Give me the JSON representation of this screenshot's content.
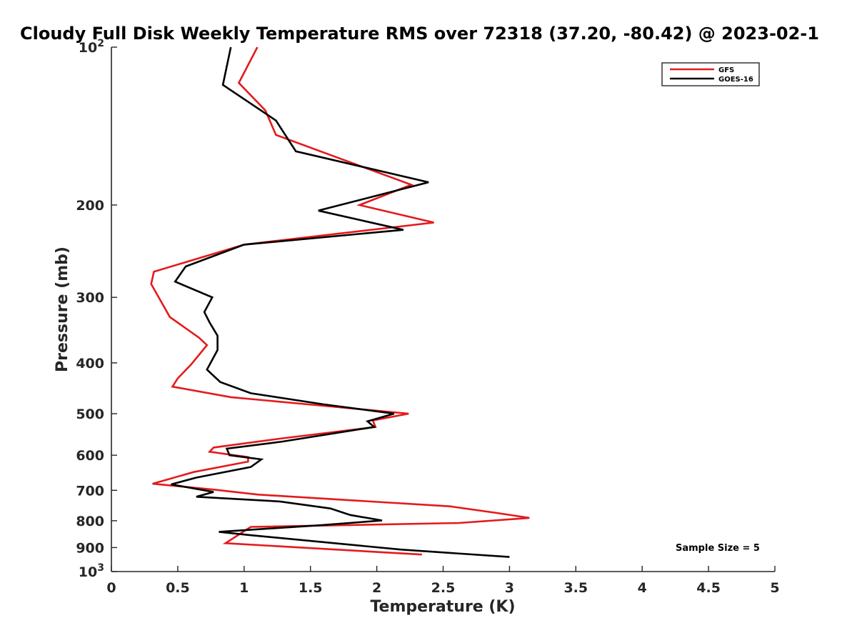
{
  "chart_data": {
    "type": "line",
    "title": "Cloudy Full Disk Weekly Temperature RMS over 72318 (37.20, -80.42) @ 2023-02-1",
    "xlabel": "Temperature (K)",
    "ylabel": "Pressure (mb)",
    "xlim": [
      0,
      5
    ],
    "ylim": [
      100,
      1000
    ],
    "y_scale": "log",
    "y_reversed": true,
    "x_ticks": [
      "0",
      "0.5",
      "1",
      "1.5",
      "2",
      "2.5",
      "3",
      "3.5",
      "4",
      "4.5",
      "5"
    ],
    "y_ticks": [
      {
        "value": 100,
        "base": "10",
        "exp": "2"
      },
      {
        "value": 200,
        "label": "200"
      },
      {
        "value": 300,
        "label": "300"
      },
      {
        "value": 400,
        "label": "400"
      },
      {
        "value": 500,
        "label": "500"
      },
      {
        "value": 600,
        "label": "600"
      },
      {
        "value": 700,
        "label": "700"
      },
      {
        "value": 800,
        "label": "800"
      },
      {
        "value": 900,
        "label": "900"
      },
      {
        "value": 1000,
        "base": "10",
        "exp": "3"
      }
    ],
    "grid": false,
    "legend_position": "top-right",
    "annotation": "Sample Size = 5",
    "series": [
      {
        "name": "GFS",
        "color": "#e41a1c",
        "x": [
          1.1,
          0.96,
          1.16,
          1.24,
          2.26,
          1.87,
          2.43,
          1.0,
          0.32,
          0.3,
          0.44,
          0.66,
          0.72,
          0.6,
          0.5,
          0.46,
          0.9,
          1.6,
          2.24,
          1.97,
          1.99,
          1.29,
          0.77,
          0.74,
          1.03,
          1.03,
          0.62,
          0.31,
          0.78,
          1.1,
          2.55,
          2.9,
          3.15,
          2.62,
          1.05,
          0.86,
          2.34
        ],
        "y": [
          100,
          117,
          132,
          147,
          183,
          200,
          216,
          238,
          268,
          283,
          327,
          358,
          370,
          403,
          428,
          444,
          465,
          483,
          500,
          515,
          530,
          557,
          580,
          591,
          605,
          617,
          646,
          680,
          698,
          713,
          751,
          773,
          790,
          808,
          822,
          883,
          928
        ]
      },
      {
        "name": "GOES-16",
        "color": "#000000",
        "x": [
          0.9,
          0.84,
          1.24,
          1.39,
          2.39,
          1.56,
          2.2,
          1.0,
          0.56,
          0.48,
          0.76,
          0.7,
          0.74,
          0.8,
          0.8,
          0.72,
          0.82,
          1.05,
          1.6,
          2.13,
          1.93,
          1.98,
          1.29,
          0.87,
          0.89,
          1.13,
          1.05,
          0.64,
          0.45,
          0.77,
          0.64,
          1.27,
          1.65,
          1.8,
          2.04,
          1.6,
          0.81,
          1.04,
          2.18,
          3.0
        ],
        "y": [
          100,
          118,
          138,
          158,
          181,
          205,
          223,
          238,
          262,
          280,
          300,
          320,
          335,
          355,
          378,
          412,
          435,
          457,
          480,
          500,
          517,
          530,
          565,
          583,
          600,
          611,
          632,
          662,
          682,
          705,
          720,
          735,
          758,
          780,
          799,
          815,
          840,
          852,
          908,
          938
        ]
      }
    ]
  }
}
